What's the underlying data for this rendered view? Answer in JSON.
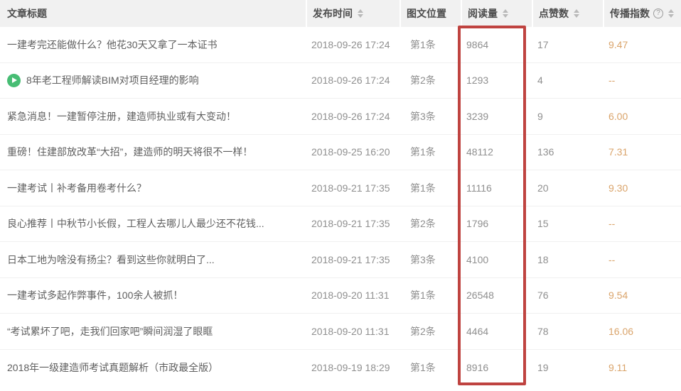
{
  "table": {
    "columns": [
      {
        "key": "title",
        "label": "文章标题",
        "sortable": false,
        "has_help_icon": false
      },
      {
        "key": "publish_time",
        "label": "发布时间",
        "sortable": true,
        "has_help_icon": false
      },
      {
        "key": "position",
        "label": "图文位置",
        "sortable": false,
        "has_help_icon": false
      },
      {
        "key": "reads",
        "label": "阅读量",
        "sortable": true,
        "has_help_icon": false
      },
      {
        "key": "likes",
        "label": "点赞数",
        "sortable": true,
        "has_help_icon": false
      },
      {
        "key": "spread_index",
        "label": "传播指数",
        "sortable": true,
        "has_help_icon": true
      }
    ],
    "help_icon_glyph": "?",
    "rows": [
      {
        "title": "一建考完还能做什么？他花30天又拿了一本证书",
        "has_video_icon": false,
        "publish_time": "2018-09-26 17:24",
        "position": "第1条",
        "reads": "9864",
        "likes": "17",
        "spread_index": "9.47"
      },
      {
        "title": "8年老工程师解读BIM对项目经理的影响",
        "has_video_icon": true,
        "publish_time": "2018-09-26 17:24",
        "position": "第2条",
        "reads": "1293",
        "likes": "4",
        "spread_index": "--"
      },
      {
        "title": "紧急消息！一建暂停注册，建造师执业或有大变动！",
        "has_video_icon": false,
        "publish_time": "2018-09-26 17:24",
        "position": "第3条",
        "reads": "3239",
        "likes": "9",
        "spread_index": "6.00"
      },
      {
        "title": "重磅！住建部放改革“大招”，建造师的明天将很不一样！",
        "has_video_icon": false,
        "publish_time": "2018-09-25 16:20",
        "position": "第1条",
        "reads": "48112",
        "likes": "136",
        "spread_index": "7.31"
      },
      {
        "title": "一建考试丨补考备用卷考什么？",
        "has_video_icon": false,
        "publish_time": "2018-09-21 17:35",
        "position": "第1条",
        "reads": "11116",
        "likes": "20",
        "spread_index": "9.30"
      },
      {
        "title": "良心推荐丨中秋节小长假，工程人去哪儿人最少还不花钱...",
        "has_video_icon": false,
        "publish_time": "2018-09-21 17:35",
        "position": "第2条",
        "reads": "1796",
        "likes": "15",
        "spread_index": "--"
      },
      {
        "title": "日本工地为啥没有扬尘？看到这些你就明白了...",
        "has_video_icon": false,
        "publish_time": "2018-09-21 17:35",
        "position": "第3条",
        "reads": "4100",
        "likes": "18",
        "spread_index": "--"
      },
      {
        "title": "一建考试多起作弊事件，100余人被抓！",
        "has_video_icon": false,
        "publish_time": "2018-09-20 11:31",
        "position": "第1条",
        "reads": "26548",
        "likes": "76",
        "spread_index": "9.54"
      },
      {
        "title": "“考试累坏了吧，走我们回家吧”瞬间润湿了眼眶",
        "has_video_icon": false,
        "publish_time": "2018-09-20 11:31",
        "position": "第2条",
        "reads": "4464",
        "likes": "78",
        "spread_index": "16.06"
      },
      {
        "title": "2018年一级建造师考试真题解析（市政最全版）",
        "has_video_icon": false,
        "publish_time": "2018-09-19 18:29",
        "position": "第1条",
        "reads": "8916",
        "likes": "19",
        "spread_index": "9.11"
      }
    ]
  },
  "colors": {
    "header_bg": "#f1f1f1",
    "header_text": "#4c4c4c",
    "title_text": "#5f5f5f",
    "meta_text": "#8f8f8f",
    "spread_index_text": "#daa46b",
    "highlight_border": "#bf4340",
    "video_icon_green": "#47bd74",
    "row_divider": "#f0f0f0"
  },
  "icons": {
    "sort": "up-down-carets",
    "help": "question-mark-circle",
    "video": "play-circle"
  }
}
